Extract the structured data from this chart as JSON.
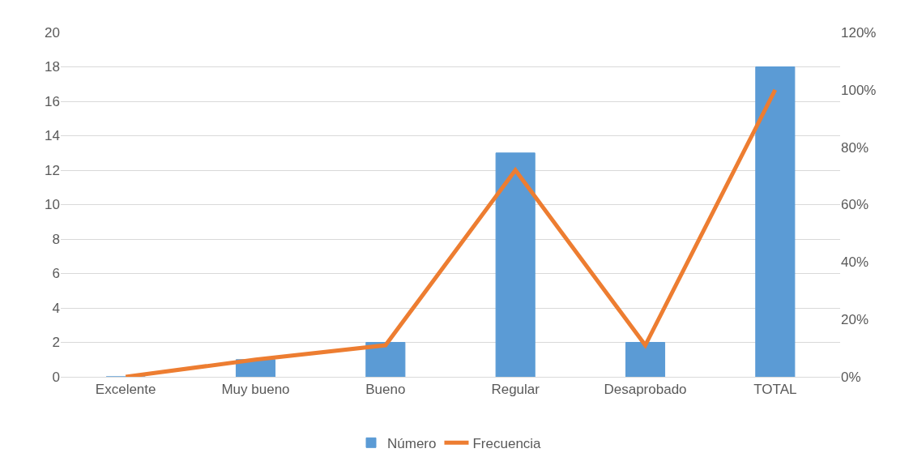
{
  "chart_data": {
    "type": "bar",
    "categories": [
      "Excelente",
      "Muy bueno",
      "Bueno",
      "Regular",
      "Desaprobado",
      "TOTAL"
    ],
    "series": [
      {
        "name": "Número",
        "color": "#5b9bd5",
        "values": [
          0,
          1,
          2,
          13,
          2,
          18
        ]
      },
      {
        "name": "Frecuencia",
        "type": "line",
        "axis": "y2",
        "color": "#ed7d31",
        "marker": "none",
        "values": [
          0,
          6,
          11,
          72,
          11,
          100
        ]
      }
    ],
    "ylim": [
      0,
      20
    ],
    "yticks": [
      0,
      2,
      4,
      6,
      8,
      10,
      12,
      14,
      16,
      18,
      20
    ],
    "y2lim": [
      0,
      120
    ],
    "y2ticks": [
      {
        "value": 0,
        "label": "0%"
      },
      {
        "value": 20,
        "label": "20%"
      },
      {
        "value": 40,
        "label": "40%"
      },
      {
        "value": 60,
        "label": "60%"
      },
      {
        "value": 80,
        "label": "80%"
      },
      {
        "value": 100,
        "label": "100%"
      },
      {
        "value": 120,
        "label": "120%"
      }
    ],
    "grid": "y",
    "legend": "bottom"
  }
}
